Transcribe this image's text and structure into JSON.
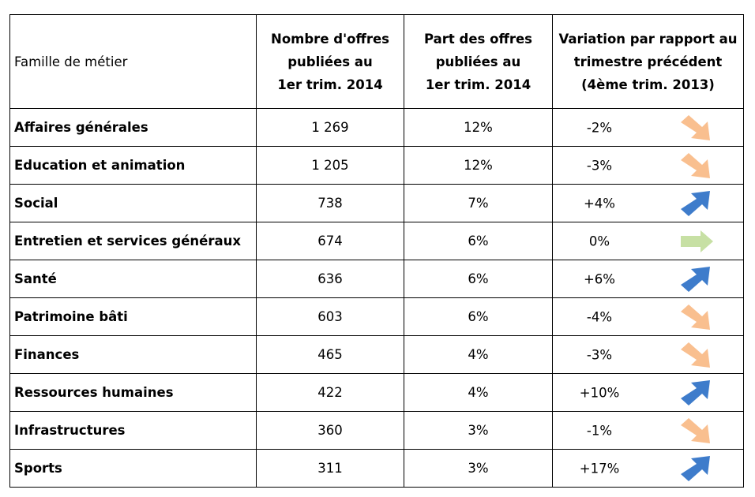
{
  "table": {
    "headers": [
      "Famille de métier",
      [
        "Nombre d'offres",
        "publiées au",
        "1er trim. 2014"
      ],
      [
        "Part des offres",
        "publiées au",
        "1er trim. 2014"
      ],
      [
        "Variation par rapport au",
        "trimestre précédent",
        "(4ème trim. 2013)"
      ]
    ],
    "rows": [
      {
        "family": "Affaires générales",
        "count": "1 269",
        "share": "12%",
        "variation": "-2%",
        "trend": "down"
      },
      {
        "family": "Education et animation",
        "count": "1 205",
        "share": "12%",
        "variation": "-3%",
        "trend": "down"
      },
      {
        "family": "Social",
        "count": "738",
        "share": "7%",
        "variation": "+4%",
        "trend": "up"
      },
      {
        "family": "Entretien et services généraux",
        "count": "674",
        "share": "6%",
        "variation": "0%",
        "trend": "flat"
      },
      {
        "family": "Santé",
        "count": "636",
        "share": "6%",
        "variation": "+6%",
        "trend": "up"
      },
      {
        "family": "Patrimoine bâti",
        "count": "603",
        "share": "6%",
        "variation": "-4%",
        "trend": "down"
      },
      {
        "family": "Finances",
        "count": "465",
        "share": "4%",
        "variation": "-3%",
        "trend": "down"
      },
      {
        "family": "Ressources humaines",
        "count": "422",
        "share": "4%",
        "variation": "+10%",
        "trend": "up"
      },
      {
        "family": "Infrastructures",
        "count": "360",
        "share": "3%",
        "variation": "-1%",
        "trend": "down"
      },
      {
        "family": "Sports",
        "count": "311",
        "share": "3%",
        "variation": "+17%",
        "trend": "up"
      }
    ]
  },
  "icons": {
    "down": "arrow-down-right-icon",
    "up": "arrow-up-right-icon",
    "flat": "arrow-right-icon"
  },
  "colors": {
    "down": "#F9BF8F",
    "up": "#3E7CCB",
    "flat": "#C7E0A4",
    "border": "#000000"
  }
}
